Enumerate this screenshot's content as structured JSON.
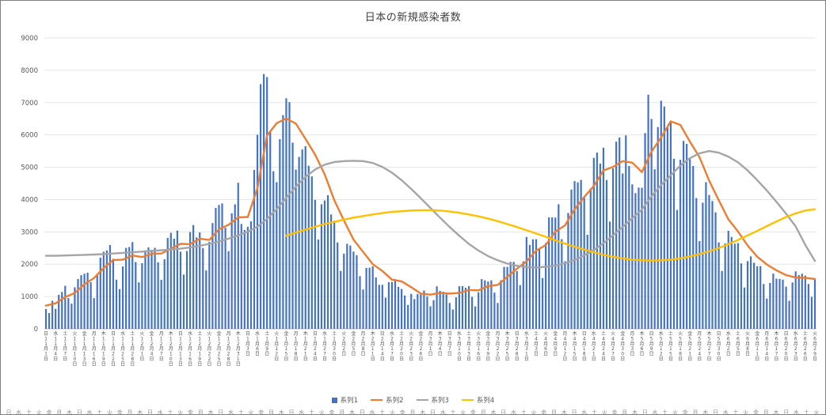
{
  "chart": {
    "background": "#ffffff",
    "border_color": "#808080",
    "grid_color": "#e5e5e5",
    "axis_color": "#bfbfbf",
    "text_color": "#595959"
  },
  "legend": [
    {
      "label": "系列1",
      "type": "bar",
      "color": "#4472C4"
    },
    {
      "label": "系列2",
      "type": "line",
      "color": "#ED7D31"
    },
    {
      "label": "系列3",
      "type": "line",
      "color": "#A5A5A5"
    },
    {
      "label": "系列4",
      "type": "line",
      "color": "#FFC000"
    }
  ],
  "chart_data": {
    "type": "combo",
    "title": "日本の新規感染者数",
    "xlabel": "",
    "ylabel": "",
    "ylim": [
      0,
      9000
    ],
    "ytick_interval": 1000,
    "ytick_labels": [
      "0",
      "1000",
      "2000",
      "3000",
      "4000",
      "5000",
      "6000",
      "7000",
      "8000",
      "9000"
    ],
    "tick_step_days": 3,
    "x_tick_labels": [
      "日 11月1日",
      "水 11月4日",
      "土 11月7日",
      "火 11月10日",
      "金 11月13日",
      "月 11月16日",
      "木 11月19日",
      "日 11月22日",
      "水 11月25日",
      "土 11月28日",
      "火 12月1日",
      "金 12月4日",
      "月 12月7日",
      "木 12月10日",
      "日 12月13日",
      "水 12月16日",
      "土 12月19日",
      "火 12月22日",
      "金 12月25日",
      "月 12月28日",
      "木 12月31日",
      "日 1月3日",
      "水 1月6日",
      "土 1月9日",
      "火 1月12日",
      "金 1月15日",
      "月 1月18日",
      "木 1月21日",
      "日 1月24日",
      "水 1月27日",
      "土 1月30日",
      "火 2月2日",
      "金 2月5日",
      "月 2月8日",
      "木 2月11日",
      "日 2月14日",
      "水 2月17日",
      "土 2月20日",
      "火 2月23日",
      "金 2月26日",
      "月 3月1日",
      "木 3月4日",
      "日 3月7日",
      "水 3月10日",
      "土 3月13日",
      "火 3月16日",
      "金 3月19日",
      "月 3月22日",
      "木 3月25日",
      "日 3月28日",
      "水 3月31日",
      "土 4月3日",
      "火 4月6日",
      "金 4月9日",
      "月 4月12日",
      "木 4月15日",
      "日 4月18日",
      "水 4月21日",
      "土 4月24日",
      "火 4月27日",
      "金 4月30日",
      "月 5月3日",
      "木 5月6日",
      "日 5月9日",
      "水 5月12日",
      "土 5月15日",
      "火 5月18日",
      "金 5月21日",
      "月 5月24日",
      "木 5月27日",
      "日 5月30日",
      "水 6月2日",
      "土 6月5日",
      "火 6月8日",
      "金 6月11日",
      "月 6月14日",
      "木 6月17日",
      "日 6月20日",
      "水 6月23日",
      "土 6月26日",
      "火 6月29日"
    ],
    "series": [
      {
        "name": "系列1",
        "type": "bar",
        "color": "#4472C4",
        "x": "daily from 11月1日 to 6月29日",
        "values": [
          614,
          488,
          867,
          620,
          1050,
          1141,
          1331,
          953,
          780,
          1284,
          1543,
          1660,
          1705,
          1738,
          1441,
          950,
          1699,
          2201,
          2386,
          2425,
          2592,
          2168,
          1521,
          1229,
          1930,
          2504,
          2531,
          2684,
          2066,
          1438,
          2030,
          2430,
          2518,
          2442,
          2508,
          2058,
          1515,
          2152,
          2812,
          2972,
          2788,
          3041,
          2388,
          1680,
          2410,
          2994,
          3211,
          2829,
          2982,
          2501,
          1806,
          2688,
          3271,
          3742,
          3832,
          3881,
          3127,
          2403,
          3576,
          3852,
          4520,
          3246,
          3059,
          3158,
          3325,
          4915,
          6004,
          7570,
          7882,
          7790,
          6096,
          4876,
          4538,
          5870,
          6610,
          7133,
          7014,
          5759,
          4925,
          5320,
          5549,
          5653,
          5045,
          4717,
          3988,
          2764,
          3853,
          3971,
          4133,
          3539,
          3344,
          2673,
          1792,
          2324,
          2631,
          2577,
          2389,
          2279,
          1630,
          1216,
          1887,
          1891,
          1933,
          1590,
          1362,
          1364,
          965,
          1443,
          1448,
          1538,
          1301,
          1234,
          1032,
          739,
          1083,
          921,
          1076,
          1083,
          1185,
          999,
          697,
          888,
          1316,
          1173,
          1148,
          1066,
          800,
          599,
          974,
          1317,
          1320,
          1271,
          1320,
          989,
          695,
          1133,
          1539,
          1501,
          1463,
          1500,
          1121,
          800,
          1500,
          1918,
          1917,
          2070,
          2072,
          1785,
          1351,
          2087,
          2843,
          2597,
          2770,
          2774,
          2472,
          1571,
          2654,
          3450,
          3448,
          3441,
          3854,
          2774,
          2091,
          3584,
          4309,
          4571,
          4532,
          4608,
          4093,
          2910,
          4342,
          5291,
          5452,
          5113,
          5605,
          4605,
          3318,
          4965,
          5792,
          5918,
          4808,
          5986,
          5038,
          4470,
          4199,
          4368,
          4365,
          6056,
          7244,
          6493,
          4936,
          6243,
          7057,
          6879,
          6263,
          6421,
          5261,
          3679,
          5230,
          5814,
          5721,
          5250,
          5040,
          4048,
          2714,
          3901,
          4536,
          4141,
          3955,
          3604,
          2672,
          1791,
          2644,
          3035,
          2843,
          2634,
          2654,
          2025,
          1278,
          2096,
          2242,
          2046,
          1937,
          1942,
          1387,
          938,
          1420,
          1709,
          1554,
          1545,
          1522,
          1307,
          868,
          1435,
          1779,
          1661,
          1705,
          1647,
          1387,
          990,
          1524
        ]
      },
      {
        "name": "系列2",
        "type": "line",
        "color": "#ED7D31",
        "start_tick": 0,
        "values": [
          720,
          790,
          980,
          1110,
          1380,
          1570,
          1880,
          2130,
          2140,
          2270,
          2220,
          2320,
          2330,
          2480,
          2630,
          2620,
          2790,
          2750,
          3080,
          3220,
          3450,
          3460,
          4350,
          5980,
          6360,
          6510,
          6350,
          5880,
          5390,
          4780,
          3980,
          3350,
          2760,
          2380,
          2000,
          1790,
          1520,
          1470,
          1290,
          1090,
          1060,
          1110,
          1090,
          1110,
          1200,
          1190,
          1320,
          1360,
          1610,
          1860,
          2090,
          2420,
          2590,
          3010,
          3200,
          3700,
          4080,
          4420,
          4900,
          5010,
          5190,
          5140,
          4850,
          5480,
          5920,
          6420,
          6310,
          5790,
          5310,
          4580,
          3980,
          3390,
          3010,
          2580,
          2230,
          1990,
          1810,
          1660,
          1590,
          1580,
          1540
        ]
      },
      {
        "name": "系列3",
        "type": "line",
        "color": "#A5A5A5",
        "start_tick": 0,
        "values": [
          2260,
          2260,
          2270,
          2280,
          2290,
          2300,
          2310,
          2330,
          2350,
          2370,
          2390,
          2410,
          2430,
          2450,
          2480,
          2520,
          2570,
          2630,
          2700,
          2790,
          2890,
          3000,
          3160,
          3400,
          3700,
          4050,
          4400,
          4700,
          4930,
          5080,
          5160,
          5190,
          5200,
          5190,
          5130,
          5010,
          4830,
          4600,
          4330,
          4040,
          3740,
          3440,
          3150,
          2880,
          2630,
          2420,
          2250,
          2120,
          2020,
          1950,
          1910,
          1900,
          1920,
          1960,
          2030,
          2130,
          2270,
          2440,
          2650,
          2890,
          3150,
          3420,
          3690,
          4100,
          4450,
          4750,
          5050,
          5280,
          5430,
          5500,
          5450,
          5330,
          5150,
          4900,
          4600,
          4280,
          3930,
          3560,
          3170,
          2600,
          2100
        ]
      },
      {
        "name": "系列4",
        "type": "line",
        "color": "#FFC000",
        "start_tick": 25,
        "values": [
          2880,
          2980,
          3070,
          3160,
          3240,
          3310,
          3380,
          3440,
          3490,
          3540,
          3580,
          3620,
          3640,
          3660,
          3670,
          3670,
          3660,
          3630,
          3590,
          3540,
          3480,
          3410,
          3330,
          3240,
          3150,
          3050,
          2950,
          2850,
          2740,
          2640,
          2540,
          2450,
          2370,
          2290,
          2230,
          2180,
          2140,
          2120,
          2110,
          2120,
          2140,
          2180,
          2240,
          2310,
          2400,
          2500,
          2620,
          2750,
          2890,
          3030,
          3180,
          3320,
          3460,
          3570,
          3660,
          3700
        ]
      }
    ],
    "legend_position": "bottom",
    "grid": true
  }
}
